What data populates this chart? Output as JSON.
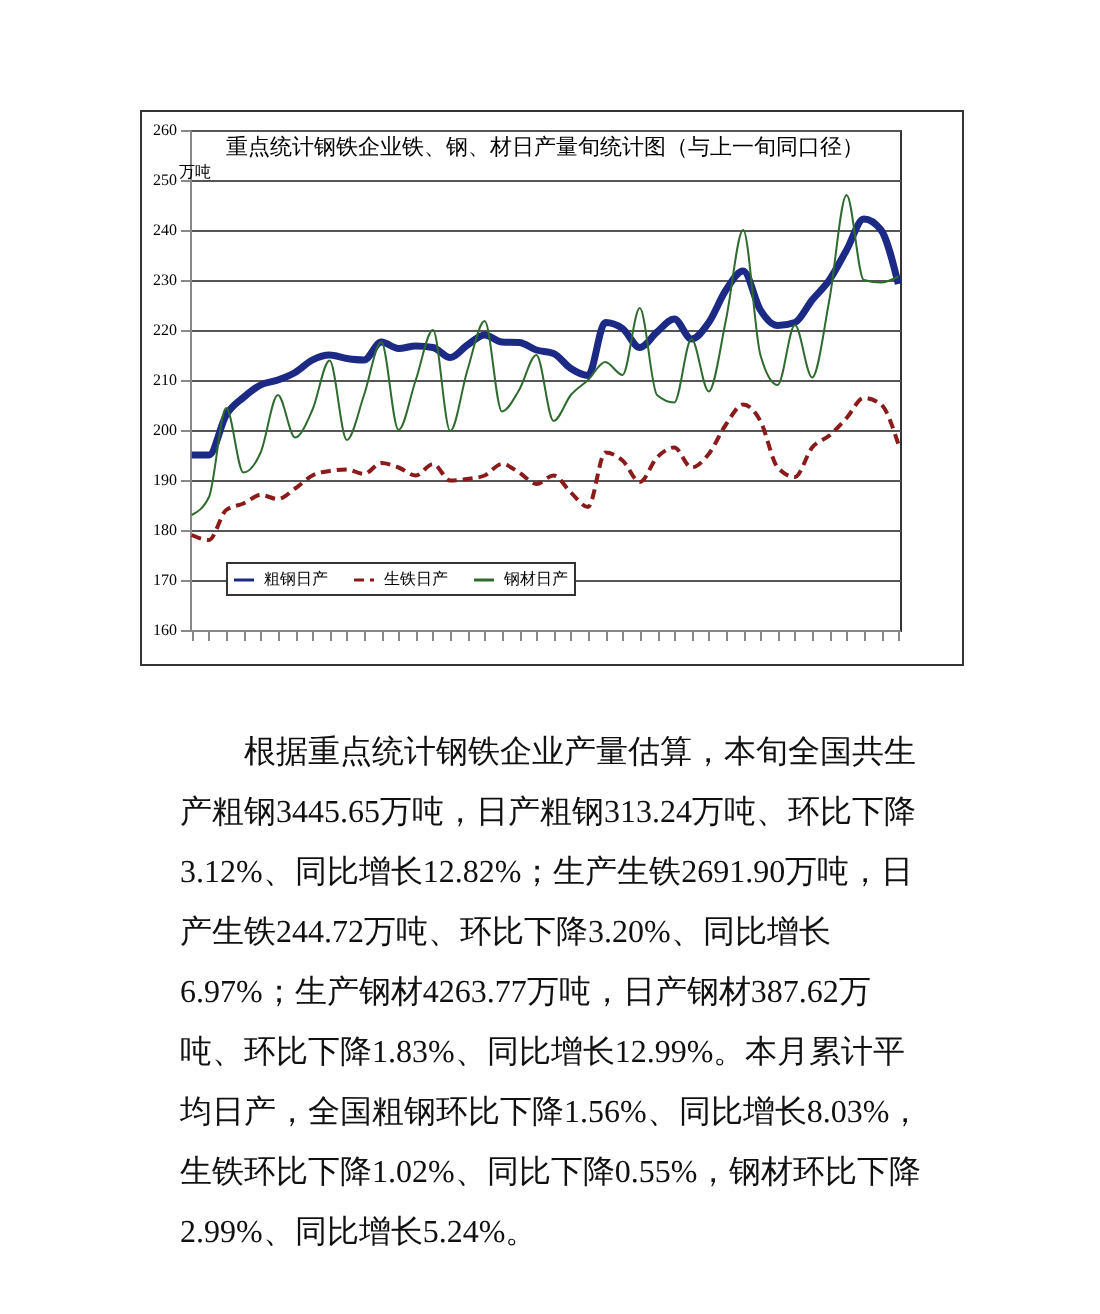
{
  "chart_data": {
    "type": "line",
    "title": "重点统计钢铁企业铁、钢、材日产量旬统计图（与上一旬同口径）",
    "ylabel": "万吨",
    "categories": [
      null,
      null,
      null,
      null,
      null,
      null,
      null,
      null,
      null,
      null,
      null,
      null,
      null,
      null,
      null,
      null,
      null,
      null,
      null,
      null,
      null,
      null,
      null,
      null,
      null,
      null,
      null,
      null,
      null,
      null,
      null,
      null,
      null,
      null,
      null,
      null,
      null,
      null,
      null,
      null,
      null,
      null
    ],
    "series": [
      {
        "name": "粗钢日产",
        "color": "#1c2a85",
        "line_style": "solid",
        "values": [
          195,
          195,
          203,
          206.5,
          209,
          210,
          211.5,
          214,
          215,
          214.3,
          214,
          217.6,
          216.3,
          216.8,
          216.5,
          214.5,
          217,
          219,
          217.6,
          217.5,
          216,
          215.3,
          212.3,
          210.9,
          221.5,
          220.3,
          216.5,
          219.6,
          222.2,
          218.2,
          221.5,
          228,
          231.8,
          224,
          220.9,
          221.5,
          226,
          230,
          236,
          242.2,
          240,
          229.2
        ]
      },
      {
        "name": "生铁日产",
        "color": "#8b1a1a",
        "line_style": "dashed",
        "values": [
          179,
          178,
          184,
          185.3,
          187,
          186.2,
          188.3,
          190.9,
          191.8,
          192.1,
          191.2,
          193.4,
          192.5,
          190.9,
          193.2,
          189.9,
          190.2,
          190.9,
          193.2,
          191.5,
          189.2,
          190.9,
          187.5,
          184.6,
          195.5,
          193.9,
          189.6,
          194.5,
          196.5,
          192.5,
          195.2,
          201.1,
          205.1,
          201.8,
          192.5,
          190.6,
          196.5,
          198.9,
          202.4,
          206.4,
          205.1,
          197.2
        ]
      },
      {
        "name": "钢材日产",
        "color": "#2e6b2e",
        "line_style": "solid",
        "values": [
          183,
          186.6,
          204.4,
          191.5,
          195.5,
          207,
          198.5,
          204,
          213.9,
          198,
          207,
          217.6,
          200,
          210,
          220,
          199.8,
          212,
          221.8,
          203.7,
          208,
          215,
          201.8,
          207,
          210,
          213.6,
          211,
          224.4,
          207,
          205.5,
          218.2,
          207.7,
          222,
          240,
          215,
          209,
          221,
          210.5,
          226,
          247,
          230,
          229.5,
          230.7
        ]
      }
    ],
    "ylim": [
      160,
      260
    ],
    "yticks": [
      160,
      170,
      180,
      190,
      200,
      210,
      220,
      230,
      240,
      250,
      260
    ],
    "grid": "y",
    "legend": "bottom left",
    "marker": "none",
    "annotations": [
      "根据重点统计钢铁企业产量估算，本旬全国共生产粗钢3445.65万吨，日产粗钢313.24万吨、环比下降3.12%、同比增长12.82%；生产生铁2691.90万吨，日产生铁244.72万吨、环比下降3.20%、同比增长6.97%；生产钢材4263.77万吨，日产钢材387.62万吨、环比下降1.83%、同比增长12.99%。本月累计平均日产，全国粗钢环比下降1.56%、同比增长8.03%，生铁环比下降1.02%、同比下降0.55%，钢材环比下降2.99%、同比增长5.24%。"
    ]
  }
}
